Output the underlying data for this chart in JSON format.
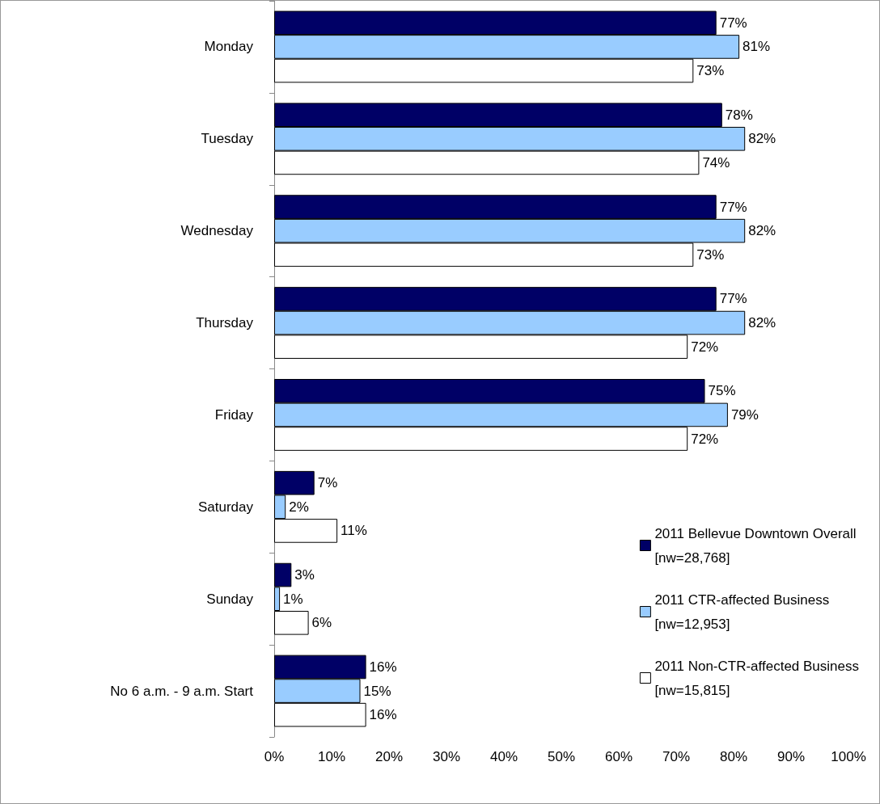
{
  "chart_data": {
    "type": "bar",
    "orientation": "horizontal",
    "categories": [
      "Monday",
      "Tuesday",
      "Wednesday",
      "Thursday",
      "Friday",
      "Saturday",
      "Sunday",
      "No 6 a.m. - 9 a.m. Start"
    ],
    "series": [
      {
        "name": "2011 Bellevue Downtown Overall\n[nw=28,768]",
        "color": "#000066",
        "values": [
          77,
          78,
          77,
          77,
          75,
          7,
          3,
          16
        ],
        "value_labels": [
          "77%",
          "78%",
          "77%",
          "77%",
          "75%",
          "7%",
          "3%",
          "16%"
        ]
      },
      {
        "name": "2011 CTR-affected Business\n[nw=12,953]",
        "color": "#99ccff",
        "values": [
          81,
          82,
          82,
          82,
          79,
          2,
          1,
          15
        ],
        "value_labels": [
          "81%",
          "82%",
          "82%",
          "82%",
          "79%",
          "2%",
          "1%",
          "15%"
        ]
      },
      {
        "name": "2011 Non-CTR-affected Business\n[nw=15,815]",
        "color": "#ffffff",
        "values": [
          73,
          74,
          73,
          72,
          72,
          11,
          6,
          16
        ],
        "value_labels": [
          "73%",
          "74%",
          "73%",
          "72%",
          "72%",
          "11%",
          "6%",
          "16%"
        ]
      }
    ],
    "xlim": [
      0,
      100
    ],
    "xticks": [
      {
        "value": 0,
        "label": "0%"
      },
      {
        "value": 10,
        "label": "10%"
      },
      {
        "value": 20,
        "label": "20%"
      },
      {
        "value": 30,
        "label": "30%"
      },
      {
        "value": 40,
        "label": "40%"
      },
      {
        "value": 50,
        "label": "50%"
      },
      {
        "value": 60,
        "label": "60%"
      },
      {
        "value": 70,
        "label": "70%"
      },
      {
        "value": 80,
        "label": "80%"
      },
      {
        "value": 90,
        "label": "90%"
      },
      {
        "value": 100,
        "label": "100%"
      }
    ],
    "grid": false,
    "legend": "bottom right"
  }
}
